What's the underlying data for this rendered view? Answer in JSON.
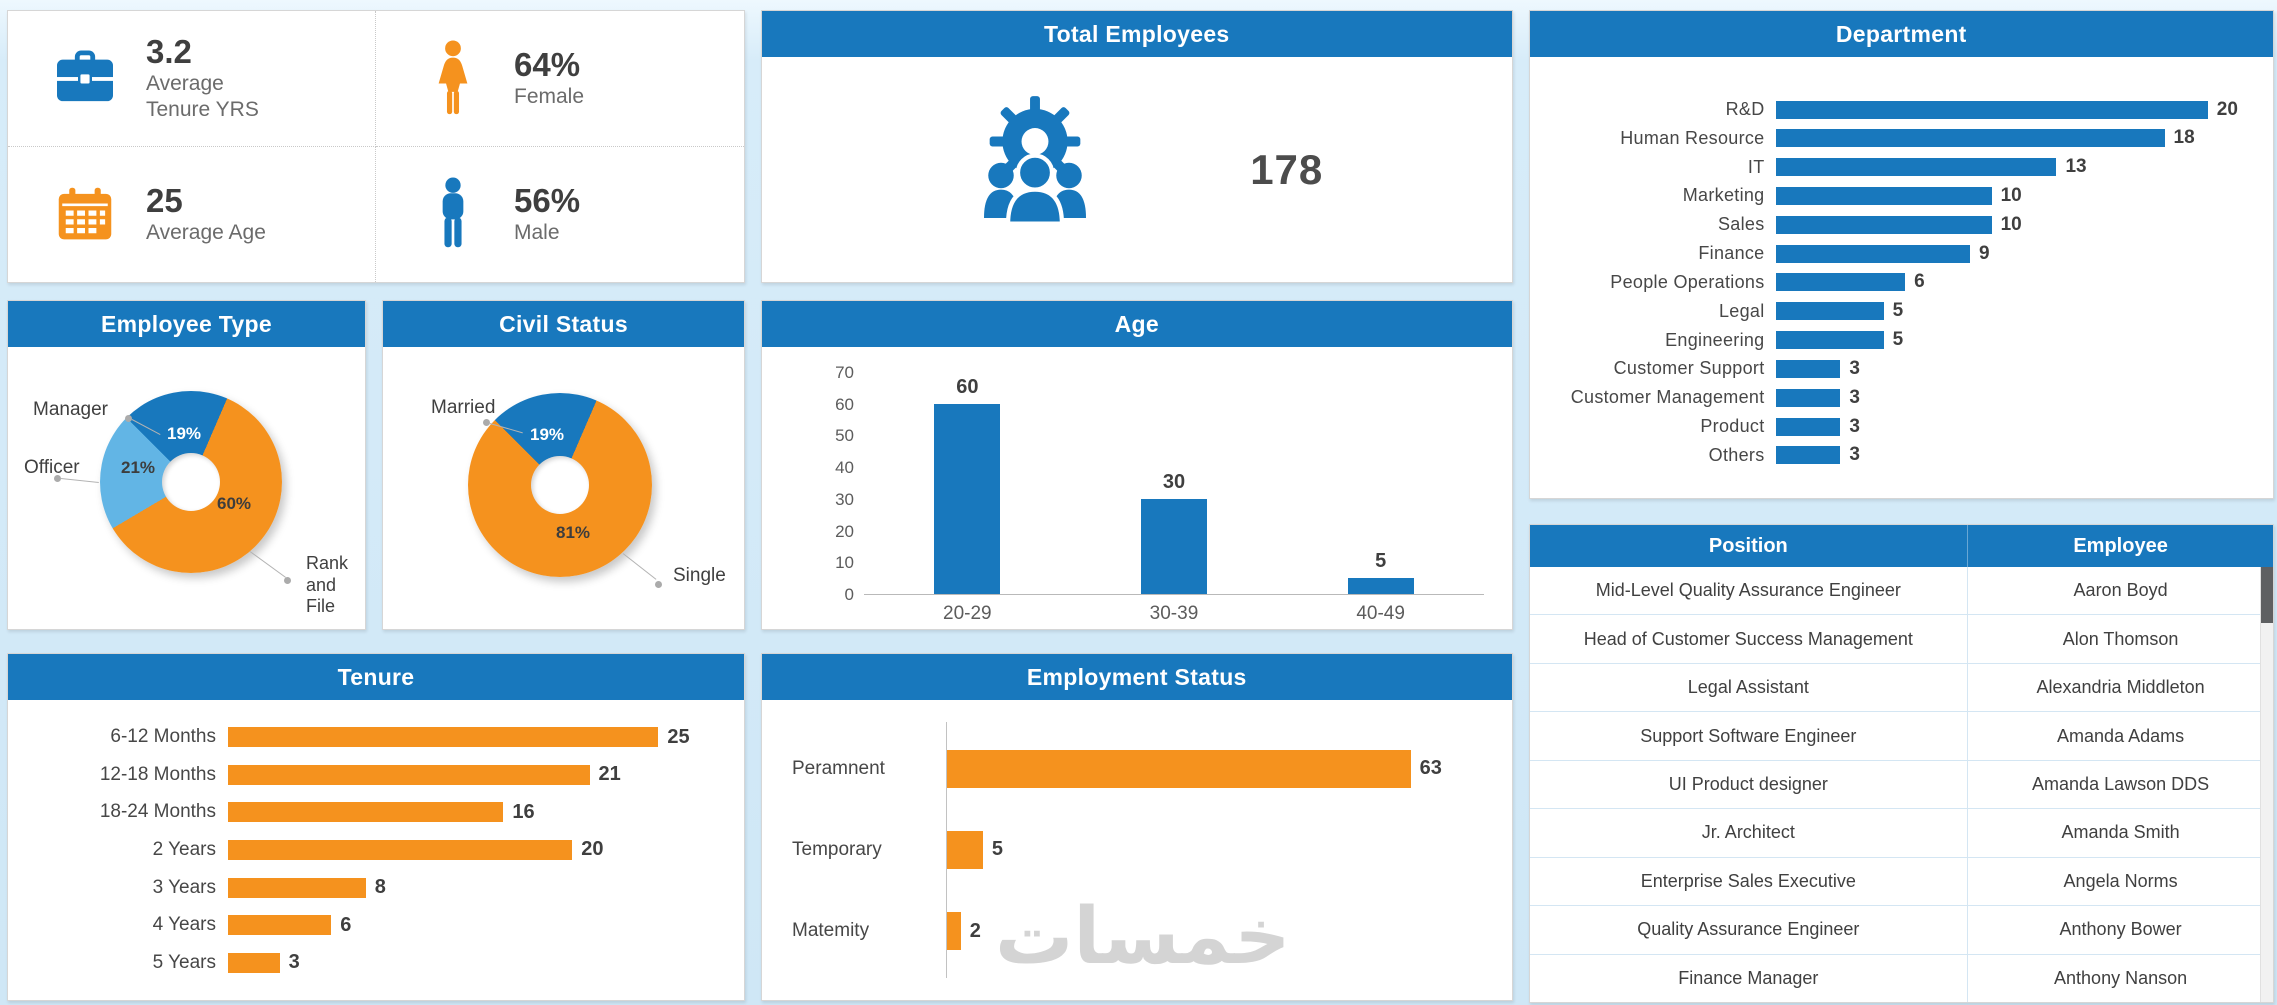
{
  "watermark": "خمسات",
  "colors": {
    "blue": "#1878bd",
    "orange": "#f5921e",
    "light_blue": "#62b5e5",
    "header_text": "#ffffff"
  },
  "kpi": {
    "tenure": {
      "value": "3.2",
      "line1": "Average",
      "line2": "Tenure  YRS"
    },
    "female": {
      "value": "64%",
      "label": "Female"
    },
    "age": {
      "value": "25",
      "label": "Average  Age"
    },
    "male": {
      "value": "56%",
      "label": "Male"
    }
  },
  "total_employees": {
    "title": "Total Employees",
    "value": "178"
  },
  "table": {
    "headers": [
      "Position",
      "Employee"
    ],
    "rows": [
      [
        "Mid-Level Quality  Assurance Engineer",
        "Aaron Boyd"
      ],
      [
        "Head of Customer Success Management",
        "Alon Thomson"
      ],
      [
        "Legal Assistant",
        "Alexandria Middleton"
      ],
      [
        "Support Software Engineer",
        "Amanda Adams"
      ],
      [
        "UI  Product designer",
        "Amanda Lawson DDS"
      ],
      [
        "Jr. Architect",
        "Amanda Smith"
      ],
      [
        "Enterprise Sales Executive",
        "Angela Norms"
      ],
      [
        "Quality Assurance Engineer",
        "Anthony Bower"
      ],
      [
        "Finance Manager",
        "Anthony Nanson"
      ]
    ]
  },
  "chart_data": [
    {
      "id": "department",
      "type": "bar",
      "orientation": "horizontal",
      "title": "Department",
      "categories": [
        "R&D",
        "Human Resource",
        "IT",
        "Marketing",
        "Sales",
        "Finance",
        "People Operations",
        "Legal",
        "Engineering",
        "Customer Support",
        "Customer Management",
        "Product",
        "Others"
      ],
      "values": [
        20,
        18,
        13,
        10,
        10,
        9,
        6,
        5,
        5,
        3,
        3,
        3,
        3
      ],
      "color": "#1878bd",
      "xlim": [
        0,
        22
      ],
      "grid": false,
      "legend": "none"
    },
    {
      "id": "employee_type",
      "type": "pie",
      "donut": true,
      "title": "Employee Type",
      "labels": [
        "Manager",
        "Rank and File",
        "Officer"
      ],
      "values": [
        19,
        60,
        21
      ],
      "colors": [
        "#1878bd",
        "#f5921e",
        "#62b5e5"
      ],
      "legend": "callout-labels"
    },
    {
      "id": "civil_status",
      "type": "pie",
      "donut": true,
      "title": "Civil Status",
      "labels": [
        "Married",
        "Single"
      ],
      "values": [
        19,
        81
      ],
      "colors": [
        "#1878bd",
        "#f5921e"
      ],
      "legend": "callout-labels"
    },
    {
      "id": "age",
      "type": "bar",
      "orientation": "vertical",
      "title": "Age",
      "categories": [
        "20-29",
        "30-39",
        "40-49"
      ],
      "values": [
        60,
        30,
        5
      ],
      "ylim": [
        0,
        70
      ],
      "yticks": [
        0,
        10,
        20,
        30,
        40,
        50,
        60,
        70
      ],
      "color": "#1878bd",
      "grid": false,
      "legend": "none"
    },
    {
      "id": "tenure",
      "type": "bar",
      "orientation": "horizontal",
      "title": "Tenure",
      "categories": [
        "6-12 Months",
        "12-18 Months",
        "18-24 Months",
        "2 Years",
        "3 Years",
        "4 Years",
        "5 Years"
      ],
      "values": [
        25,
        21,
        16,
        20,
        8,
        6,
        3
      ],
      "color": "#f5921e",
      "xlim": [
        0,
        28
      ],
      "grid": false,
      "legend": "none"
    },
    {
      "id": "employment_status",
      "type": "bar",
      "orientation": "horizontal",
      "title": "Employment Status",
      "categories": [
        "Peramnent",
        "Temporary",
        "Matemity"
      ],
      "values": [
        63,
        5,
        2
      ],
      "color": "#f5921e",
      "xlim": [
        0,
        68
      ],
      "grid": false,
      "legend": "none"
    }
  ]
}
